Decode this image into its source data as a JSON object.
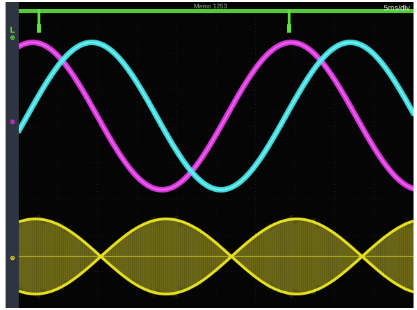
{
  "status": {
    "memo": "Memo 1253",
    "timebase": "5ms/div"
  },
  "markers": {
    "trigger": "L",
    "ch1": "⊕",
    "ch2": "⊕",
    "ch3": "⊕"
  },
  "colors": {
    "ch_green": "#5de13b",
    "ch_magenta": "#e538e9",
    "ch_cyan": "#3be6ea",
    "ch_yellow": "#e5e020",
    "screen_bg": "#050505",
    "grid": "#3b3b3b"
  },
  "chart_data": {
    "type": "line",
    "xlabel": "",
    "ylabel": "",
    "x_unit_per_div": "5ms/div",
    "grid": true,
    "series": [
      {
        "trace": "ch_green",
        "form": "digital trigger line with two pulses"
      },
      {
        "trace": "ch_magenta",
        "form": "sine",
        "period_div": 5.8
      },
      {
        "trace": "ch_cyan",
        "form": "sine",
        "period_div": 5.8,
        "phase_lag_div": 1.5
      },
      {
        "trace": "ch_yellow",
        "form": "amplitude-modulated carrier"
      }
    ]
  }
}
